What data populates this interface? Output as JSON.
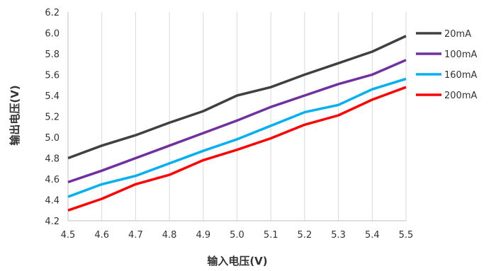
{
  "chart_data": {
    "type": "line",
    "xlabel": "输入电压(V)",
    "ylabel": "输出电压(V)",
    "xlim": [
      4.5,
      5.5
    ],
    "ylim": [
      4.2,
      6.2
    ],
    "x_ticks": [
      "4.5",
      "4.6",
      "4.7",
      "4.8",
      "4.9",
      "5.0",
      "5.1",
      "5.2",
      "5.3",
      "5.4",
      "5.5"
    ],
    "y_ticks": [
      "4.2",
      "4.4",
      "4.6",
      "4.8",
      "5.0",
      "5.2",
      "5.4",
      "5.6",
      "5.8",
      "6.0",
      "6.2"
    ],
    "grid": "vertical",
    "legend": "right",
    "x": [
      4.5,
      4.6,
      4.7,
      4.8,
      4.9,
      5.0,
      5.1,
      5.2,
      5.3,
      5.4,
      5.5
    ],
    "series": [
      {
        "name": "20mA",
        "color": "#404040",
        "values": [
          4.8,
          4.92,
          5.02,
          5.14,
          5.25,
          5.4,
          5.48,
          5.6,
          5.71,
          5.82,
          5.97
        ]
      },
      {
        "name": "100mA",
        "color": "#7030a0",
        "values": [
          4.57,
          4.68,
          4.8,
          4.92,
          5.04,
          5.16,
          5.29,
          5.4,
          5.51,
          5.6,
          5.74
        ]
      },
      {
        "name": "160mA",
        "color": "#00b0f0",
        "values": [
          4.43,
          4.55,
          4.63,
          4.75,
          4.87,
          4.98,
          5.11,
          5.24,
          5.31,
          5.46,
          5.56
        ]
      },
      {
        "name": "200mA",
        "color": "#ff0000",
        "values": [
          4.3,
          4.41,
          4.55,
          4.64,
          4.78,
          4.88,
          4.99,
          5.12,
          5.21,
          5.36,
          5.48
        ]
      }
    ]
  }
}
